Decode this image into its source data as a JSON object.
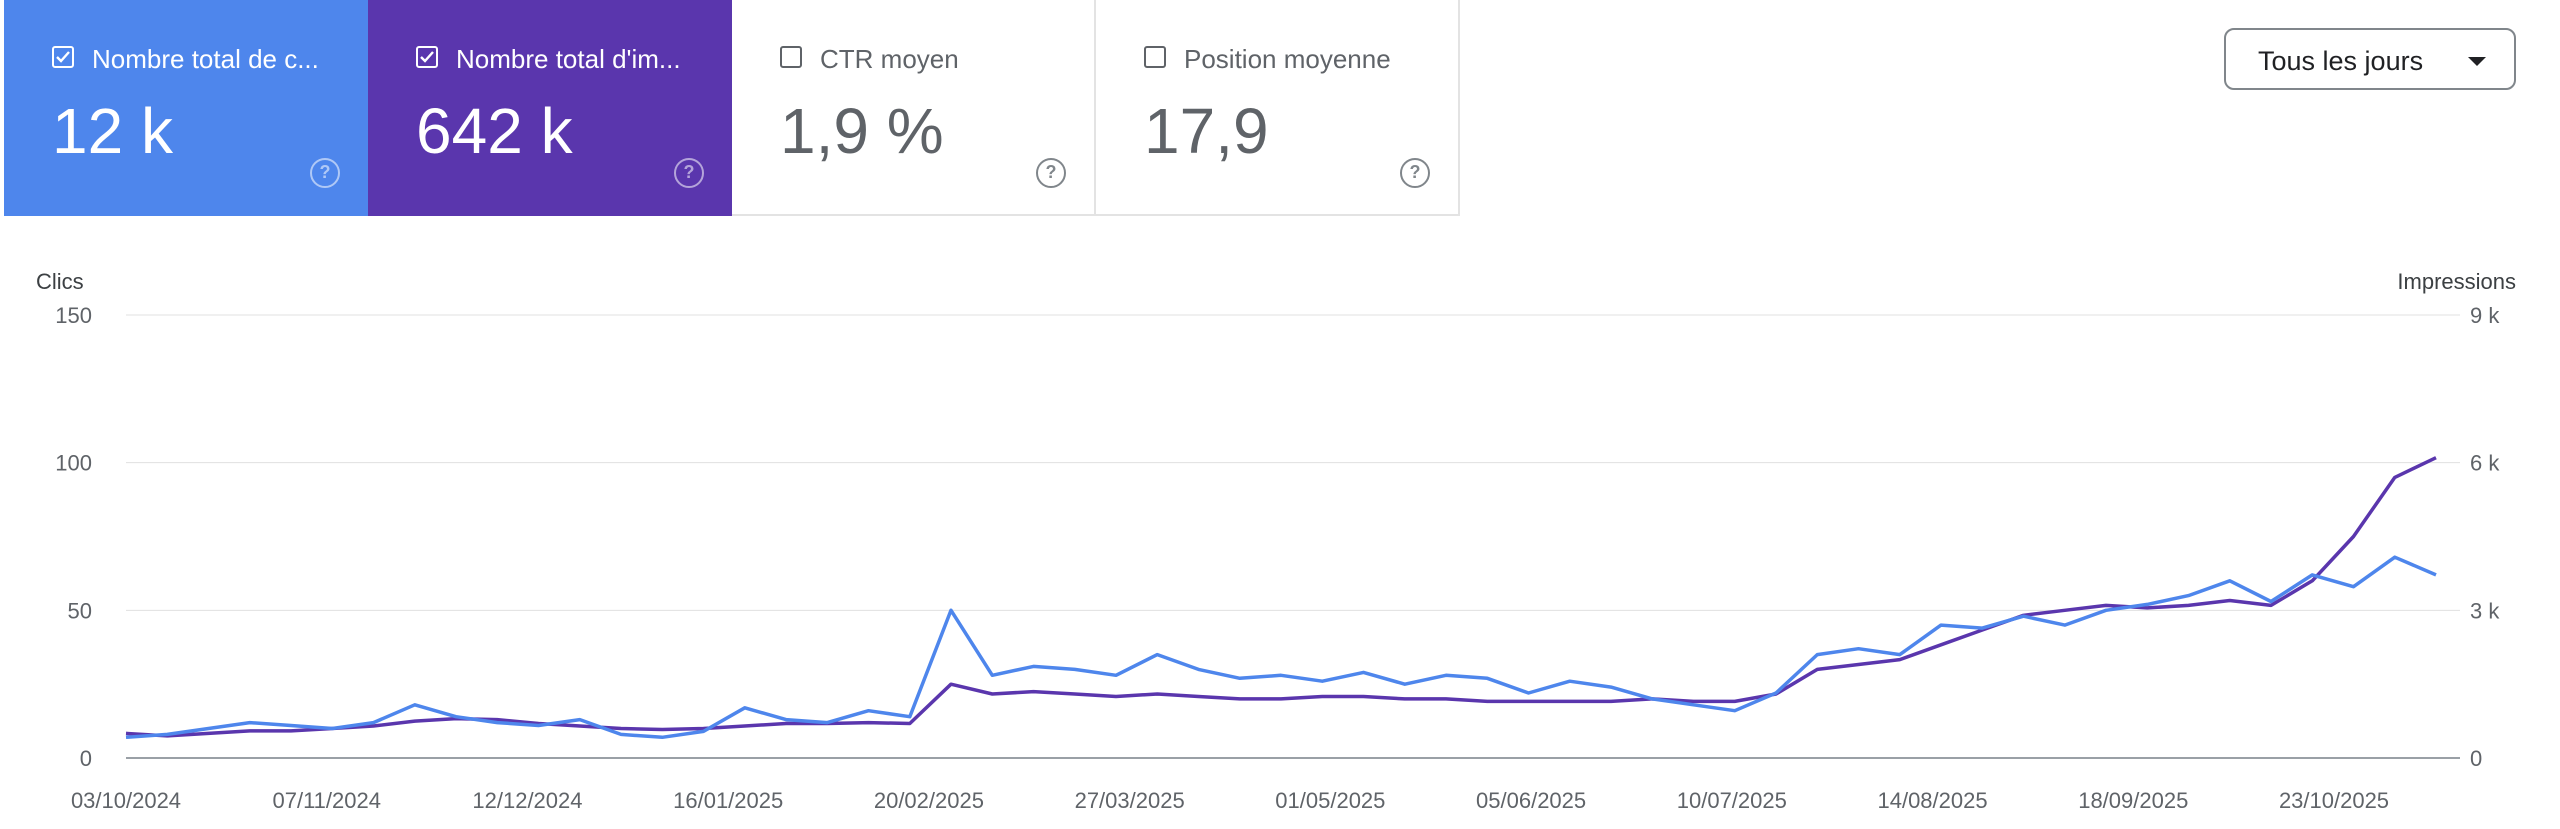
{
  "metrics": [
    {
      "label": "Nombre total de c...",
      "value": "12 k",
      "checked": true,
      "style": "blue",
      "icon": "check-icon"
    },
    {
      "label": "Nombre total d'im...",
      "value": "642 k",
      "checked": true,
      "style": "purple",
      "icon": "check-icon"
    },
    {
      "label": "CTR moyen",
      "value": "1,9 %",
      "checked": false,
      "style": "plain"
    },
    {
      "label": "Position moyenne",
      "value": "17,9",
      "checked": false,
      "style": "plain"
    }
  ],
  "help_icon": "question-mark",
  "dropdown": {
    "label": "Tous les jours",
    "icon": "caret-down-icon"
  },
  "colors": {
    "clicks": "#4e86ec",
    "impressions": "#5a36ad",
    "grid": "#e0e0e0"
  },
  "chart_data": {
    "type": "line",
    "left_axis_label": "Clics",
    "right_axis_label": "Impressions",
    "left_ticks": [
      "0",
      "50",
      "100",
      "150"
    ],
    "right_ticks": [
      "0",
      "3 k",
      "6 k",
      "9 k"
    ],
    "left_ylim": [
      0,
      150
    ],
    "right_ylim": [
      0,
      9000
    ],
    "x_tick_labels": [
      "03/10/2024",
      "07/11/2024",
      "12/12/2024",
      "16/01/2025",
      "20/02/2025",
      "27/03/2025",
      "01/05/2025",
      "05/06/2025",
      "10/07/2025",
      "14/08/2025",
      "18/09/2025",
      "23/10/2025"
    ],
    "x": [
      "03/10/2024",
      "10/10/2024",
      "17/10/2024",
      "24/10/2024",
      "31/10/2024",
      "07/11/2024",
      "14/11/2024",
      "21/11/2024",
      "28/11/2024",
      "05/12/2024",
      "12/12/2024",
      "19/12/2024",
      "26/12/2024",
      "02/01/2025",
      "09/01/2025",
      "16/01/2025",
      "23/01/2025",
      "30/01/2025",
      "06/02/2025",
      "13/02/2025",
      "20/02/2025",
      "27/02/2025",
      "06/03/2025",
      "13/03/2025",
      "20/03/2025",
      "27/03/2025",
      "03/04/2025",
      "10/04/2025",
      "17/04/2025",
      "24/04/2025",
      "01/05/2025",
      "08/05/2025",
      "15/05/2025",
      "22/05/2025",
      "29/05/2025",
      "05/06/2025",
      "12/06/2025",
      "19/06/2025",
      "26/06/2025",
      "03/07/2025",
      "10/07/2025",
      "17/07/2025",
      "24/07/2025",
      "31/07/2025",
      "07/08/2025",
      "14/08/2025",
      "21/08/2025",
      "28/08/2025",
      "04/09/2025",
      "11/09/2025",
      "18/09/2025",
      "25/09/2025",
      "02/10/2025",
      "09/10/2025",
      "16/10/2025",
      "23/10/2025",
      "27/10/2025"
    ],
    "series": [
      {
        "name": "Clics",
        "axis": "left",
        "color": "#4e86ec",
        "values": [
          7,
          8,
          10,
          12,
          11,
          10,
          12,
          18,
          14,
          12,
          11,
          13,
          8,
          7,
          9,
          17,
          13,
          12,
          16,
          14,
          50,
          28,
          31,
          30,
          28,
          35,
          30,
          27,
          28,
          26,
          29,
          25,
          28,
          27,
          22,
          26,
          24,
          20,
          18,
          16,
          22,
          35,
          37,
          35,
          45,
          44,
          48,
          45,
          50,
          52,
          55,
          60,
          53,
          62,
          58,
          68,
          62
        ]
      },
      {
        "name": "Impressions",
        "axis": "right",
        "color": "#5a36ad",
        "values": [
          500,
          450,
          500,
          550,
          550,
          600,
          650,
          750,
          800,
          780,
          700,
          650,
          600,
          580,
          600,
          650,
          700,
          700,
          720,
          700,
          1500,
          1300,
          1350,
          1300,
          1250,
          1300,
          1250,
          1200,
          1200,
          1250,
          1250,
          1200,
          1200,
          1150,
          1150,
          1150,
          1150,
          1200,
          1150,
          1150,
          1300,
          1800,
          1900,
          2000,
          2300,
          2600,
          2900,
          3000,
          3100,
          3050,
          3100,
          3200,
          3100,
          3600,
          4500,
          5700,
          6100
        ]
      }
    ]
  }
}
